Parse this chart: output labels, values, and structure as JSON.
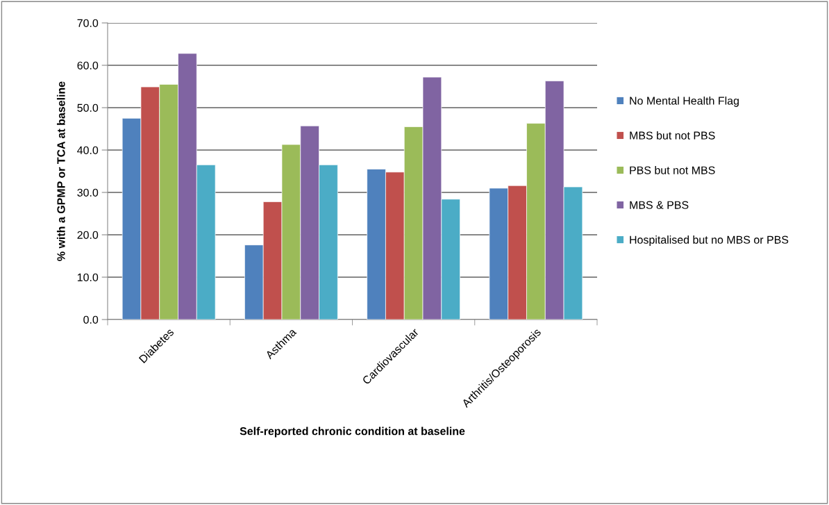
{
  "chart_data": {
    "type": "bar",
    "xlabel": "Self-reported chronic condition at baseline",
    "ylabel": "% with a GPMP or TCA at baseline",
    "categories": [
      "Diabetes",
      "Asthma",
      "Cardiovascular",
      "Arthritis/Osteoporosis"
    ],
    "series": [
      {
        "name": "No Mental Health Flag",
        "color": "#4f81bd",
        "values": [
          47.5,
          17.6,
          35.5,
          31.0
        ]
      },
      {
        "name": "MBS but not PBS",
        "color": "#c0504d",
        "values": [
          54.9,
          27.8,
          34.8,
          31.6
        ]
      },
      {
        "name": "PBS but not MBS",
        "color": "#9bbb59",
        "values": [
          55.5,
          41.3,
          45.5,
          46.3
        ]
      },
      {
        "name": "MBS & PBS",
        "color": "#8064a2",
        "values": [
          62.8,
          45.7,
          57.2,
          56.3
        ]
      },
      {
        "name": "Hospitalised but no MBS or PBS",
        "color": "#4bacc6",
        "values": [
          36.5,
          36.5,
          28.4,
          31.3
        ]
      }
    ],
    "ylim": [
      0,
      70
    ],
    "yticks": [
      {
        "value": 0,
        "label": "0.0"
      },
      {
        "value": 10,
        "label": "10.0"
      },
      {
        "value": 20,
        "label": "20.0"
      },
      {
        "value": 30,
        "label": "30.0"
      },
      {
        "value": 40,
        "label": "40.0"
      },
      {
        "value": 50,
        "label": "50.0"
      },
      {
        "value": 60,
        "label": "60.0"
      },
      {
        "value": 70,
        "label": "70.0"
      }
    ],
    "grid": "y",
    "legend": "right"
  }
}
